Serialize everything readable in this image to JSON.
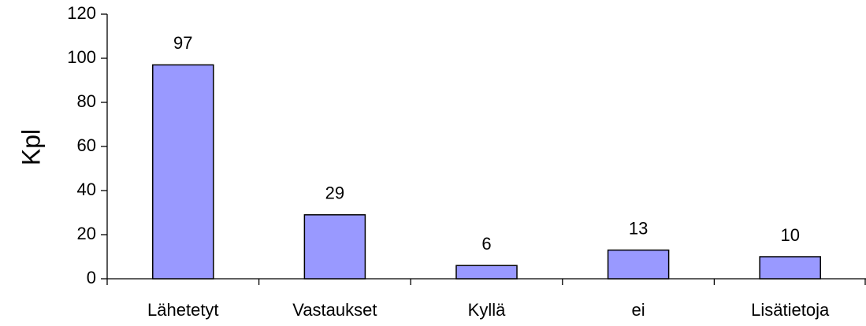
{
  "chart_data": {
    "type": "bar",
    "y_label": "Kpl",
    "categories": [
      "Lähetetyt",
      "Vastaukset",
      "Kyllä",
      "ei",
      "Lisätietoja"
    ],
    "values": [
      97,
      29,
      6,
      13,
      10
    ],
    "color": "#9999ff",
    "ylim": [
      0,
      120
    ],
    "yticks": [
      0,
      20,
      40,
      60,
      80,
      100,
      120
    ],
    "grid": false
  }
}
